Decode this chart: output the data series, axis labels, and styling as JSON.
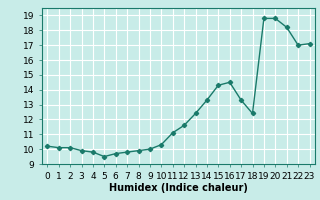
{
  "x": [
    0,
    1,
    2,
    3,
    4,
    5,
    6,
    7,
    8,
    9,
    10,
    11,
    12,
    13,
    14,
    15,
    16,
    17,
    18,
    19,
    20,
    21,
    22,
    23
  ],
  "y": [
    10.2,
    10.1,
    10.1,
    9.9,
    9.8,
    9.5,
    9.7,
    9.8,
    9.9,
    10.0,
    10.3,
    11.1,
    11.6,
    12.4,
    13.3,
    14.3,
    14.5,
    13.3,
    12.4,
    18.8,
    18.8,
    18.2,
    17.0,
    17.1
  ],
  "line_color": "#1a7a6a",
  "marker": "D",
  "marker_size": 2.2,
  "background_color": "#c8ece8",
  "grid_color": "#ffffff",
  "xlabel": "Humidex (Indice chaleur)",
  "xlim": [
    -0.5,
    23.5
  ],
  "ylim": [
    9,
    19.5
  ],
  "yticks": [
    9,
    10,
    11,
    12,
    13,
    14,
    15,
    16,
    17,
    18,
    19
  ],
  "xtick_labels": [
    "0",
    "1",
    "2",
    "3",
    "4",
    "5",
    "6",
    "7",
    "8",
    "9",
    "10",
    "11",
    "12",
    "13",
    "14",
    "15",
    "16",
    "17",
    "18",
    "19",
    "20",
    "21",
    "22",
    "23"
  ],
  "xlabel_fontsize": 7,
  "tick_fontsize": 6.5,
  "line_width": 1.0
}
